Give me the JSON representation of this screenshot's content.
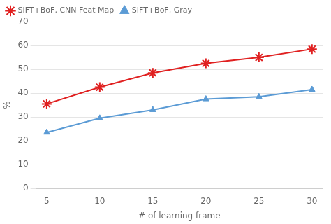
{
  "chart_data": {
    "type": "line",
    "x": [
      5,
      10,
      15,
      20,
      25,
      30
    ],
    "series": [
      {
        "name": "SIFT+BoF, CNN Feat Map",
        "color": "#e02020",
        "marker": "star",
        "values": [
          35.5,
          42.5,
          48.5,
          52.5,
          55.0,
          58.5
        ]
      },
      {
        "name": "SIFT+BoF, Gray",
        "color": "#5b9bd5",
        "marker": "triangle",
        "values": [
          23.5,
          29.5,
          33.0,
          37.5,
          38.5,
          41.5
        ]
      }
    ],
    "xlabel": "# of learning frame",
    "ylabel": "%",
    "xlim": [
      4,
      31
    ],
    "xticks": [
      5,
      10,
      15,
      20,
      25,
      30
    ],
    "ylim": [
      0,
      70
    ],
    "yticks": [
      0,
      10,
      20,
      30,
      40,
      50,
      60,
      70
    ],
    "grid": "y",
    "legend": "upper left"
  }
}
